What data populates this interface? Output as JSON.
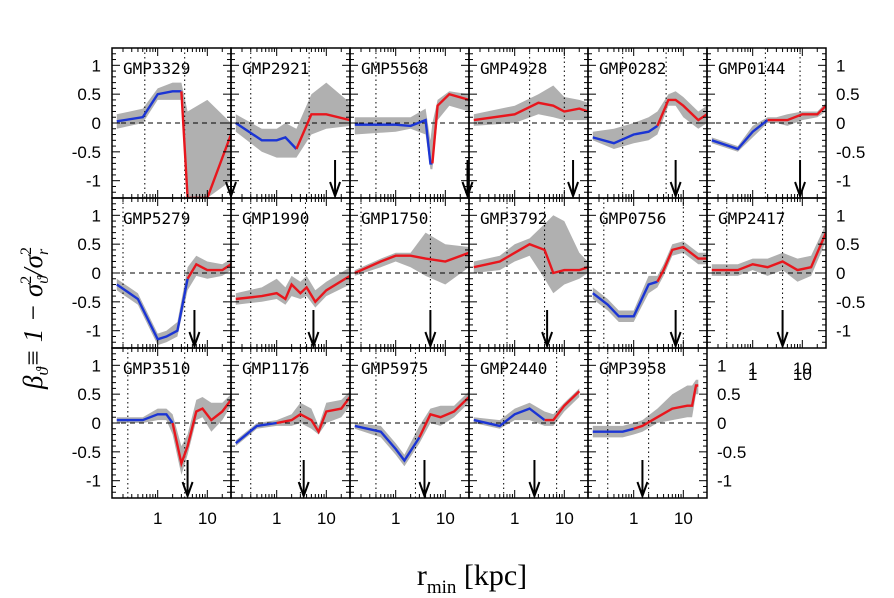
{
  "chart_data": {
    "type": "line",
    "xlabel": "r",
    "xlabel_sub": "min",
    "xlabel_unit": "[kpc]",
    "ylabel": "β",
    "ylabel_sub": "ϑ",
    "ylabel_rest": "≡ 1  −  σ",
    "ylabel_sub2": "ϑ",
    "ylabel_den": "/σ",
    "ylabel_sub3": "r",
    "ylabel_sup": "2",
    "x_scale": "log",
    "x_range": [
      0.12,
      30
    ],
    "x_ticks": [
      "1",
      "10"
    ],
    "x_tick_values": [
      1,
      10
    ],
    "y_range": [
      -1.3,
      1.3
    ],
    "y_ticks": [
      "1",
      "0.5",
      "0",
      "-0.5",
      "-1"
    ],
    "y_tick_values": [
      1,
      0.5,
      0,
      -0.5,
      -1
    ],
    "stray_x_tick": "1",
    "colors": {
      "red": "#e8161d",
      "blue": "#1b35d4",
      "band": "#b0b0b0"
    },
    "panels": [
      {
        "name": "GMP3329",
        "arrow": 30,
        "vlines": [
          0.55,
          3.5
        ],
        "switch": 3.2,
        "x": [
          0.15,
          0.5,
          1,
          2,
          3,
          4,
          10,
          30
        ],
        "y": [
          0.03,
          0.1,
          0.5,
          0.55,
          0.55,
          -1.3,
          -1.3,
          -0.2
        ],
        "lo": [
          -0.1,
          0,
          0.4,
          0.4,
          0.4,
          -1.3,
          -1.3,
          -1.0
        ],
        "hi": [
          0.15,
          0.25,
          0.6,
          0.7,
          0.7,
          0.2,
          0.4,
          0.0
        ]
      },
      {
        "name": "GMP2921",
        "arrow": 15,
        "vlines": [
          0.3,
          4.5
        ],
        "switch": 5,
        "x": [
          0.15,
          0.5,
          1,
          1.5,
          2.5,
          5,
          10,
          30
        ],
        "y": [
          0.0,
          -0.3,
          -0.3,
          -0.25,
          -0.45,
          0.15,
          0.15,
          0.05
        ],
        "lo": [
          -0.15,
          -0.5,
          -0.6,
          -0.6,
          -0.6,
          -0.2,
          -0.1,
          -0.05
        ],
        "hi": [
          0.15,
          -0.1,
          -0.1,
          0.0,
          -0.1,
          0.5,
          0.7,
          0.35
        ]
      },
      {
        "name": "GMP5568",
        "arrow": 28,
        "vlines": [
          0.4,
          3.0
        ],
        "switch": 7,
        "x": [
          0.15,
          1,
          2,
          4,
          5,
          5.5,
          7,
          12,
          30
        ],
        "y": [
          -0.03,
          -0.03,
          -0.05,
          0.05,
          -0.7,
          -0.7,
          0.3,
          0.5,
          0.4
        ],
        "lo": [
          -0.2,
          -0.15,
          -0.1,
          -0.2,
          -0.8,
          -0.8,
          0.05,
          0.3,
          0.2
        ],
        "hi": [
          0.1,
          0.1,
          0.1,
          0.25,
          -0.3,
          0.0,
          0.4,
          0.55,
          0.5
        ]
      },
      {
        "name": "GMP4928",
        "arrow": 15,
        "vlines": [
          2.0,
          10.0
        ],
        "switch": 0,
        "x": [
          0.15,
          1,
          3,
          6,
          10,
          20,
          30
        ],
        "y": [
          0.05,
          0.15,
          0.35,
          0.3,
          0.2,
          0.25,
          0.2
        ],
        "lo": [
          -0.05,
          0.0,
          0.15,
          0.1,
          0.05,
          0.05,
          0.05
        ],
        "hi": [
          0.15,
          0.3,
          0.5,
          0.65,
          0.45,
          0.4,
          0.35
        ]
      },
      {
        "name": "GMP0282",
        "arrow": 7,
        "vlines": [
          0.6,
          4.5
        ],
        "switch": 4.5,
        "x": [
          0.15,
          0.4,
          1,
          2,
          3,
          5,
          7,
          10,
          20,
          30
        ],
        "y": [
          -0.25,
          -0.35,
          -0.2,
          -0.15,
          -0.05,
          0.4,
          0.4,
          0.3,
          0.05,
          0.15
        ],
        "lo": [
          -0.3,
          -0.45,
          -0.35,
          -0.3,
          -0.2,
          0.3,
          0.3,
          0.1,
          -0.1,
          0.0
        ],
        "hi": [
          -0.15,
          -0.1,
          0.0,
          0.1,
          0.2,
          0.5,
          0.55,
          0.45,
          0.2,
          0.3
        ]
      },
      {
        "name": "GMP0144",
        "arrow": 9,
        "vlines": [
          1.8,
          9.0
        ],
        "switch": 3,
        "x": [
          0.15,
          0.5,
          1,
          2,
          3,
          5,
          10,
          20,
          30
        ],
        "y": [
          -0.3,
          -0.45,
          -0.15,
          0.05,
          0.05,
          0.05,
          0.15,
          0.15,
          0.3
        ],
        "lo": [
          -0.35,
          -0.5,
          -0.25,
          0.0,
          0.0,
          -0.05,
          0.05,
          0.1,
          0.2
        ],
        "hi": [
          -0.25,
          -0.4,
          -0.05,
          0.1,
          0.1,
          0.15,
          0.2,
          0.2,
          0.35
        ]
      },
      {
        "name": "GMP5279",
        "arrow": 5.5,
        "vlines": [
          0.2,
          3.5
        ],
        "switch": 4.5,
        "x": [
          0.15,
          0.4,
          1,
          1.5,
          2.5,
          4,
          6,
          10,
          20,
          30
        ],
        "y": [
          -0.2,
          -0.45,
          -1.15,
          -1.1,
          -1.0,
          -0.1,
          0.15,
          0.05,
          0.05,
          0.15
        ],
        "lo": [
          -0.3,
          -0.55,
          -1.25,
          -1.2,
          -1.1,
          -0.3,
          -0.05,
          -0.1,
          -0.05,
          0.05
        ],
        "hi": [
          -0.1,
          -0.35,
          -1.05,
          -1.0,
          -0.85,
          0.1,
          0.3,
          0.2,
          0.15,
          0.25
        ]
      },
      {
        "name": "GMP1990",
        "arrow": 5.5,
        "vlines": [
          0.3,
          3.8
        ],
        "switch": 0,
        "x": [
          0.15,
          0.5,
          1,
          1.5,
          2,
          3,
          4,
          6,
          10,
          30
        ],
        "y": [
          -0.45,
          -0.4,
          -0.35,
          -0.45,
          -0.2,
          -0.35,
          -0.25,
          -0.5,
          -0.3,
          -0.05
        ],
        "lo": [
          -0.55,
          -0.5,
          -0.45,
          -0.55,
          -0.4,
          -0.45,
          -0.4,
          -0.6,
          -0.4,
          -0.2
        ],
        "hi": [
          -0.35,
          -0.25,
          -0.1,
          -0.25,
          -0.05,
          -0.15,
          -0.05,
          -0.3,
          -0.15,
          0.1
        ]
      },
      {
        "name": "GMP1750",
        "arrow": 5,
        "vlines": [
          0.2,
          5.0
        ],
        "switch": 0.16,
        "x": [
          0.15,
          0.5,
          1,
          2,
          4,
          10,
          30
        ],
        "y": [
          0.0,
          0.2,
          0.3,
          0.3,
          0.25,
          0.2,
          0.35
        ],
        "lo": [
          -0.05,
          0.1,
          0.2,
          0.1,
          -0.05,
          -0.2,
          0.1
        ],
        "hi": [
          0.05,
          0.25,
          0.35,
          0.35,
          0.7,
          0.5,
          0.45
        ]
      },
      {
        "name": "GMP3792",
        "arrow": 4.5,
        "vlines": [
          0.7,
          4.0
        ],
        "switch": 0,
        "x": [
          0.15,
          0.5,
          1,
          2,
          4,
          6,
          10,
          20,
          30
        ],
        "y": [
          0.1,
          0.2,
          0.35,
          0.5,
          0.4,
          0.0,
          0.05,
          0.05,
          0.1
        ],
        "lo": [
          0.0,
          0.05,
          0.2,
          0.3,
          -0.1,
          -0.35,
          -0.2,
          -0.1,
          0.0
        ],
        "hi": [
          0.2,
          0.3,
          0.5,
          0.6,
          0.85,
          1.0,
          0.9,
          0.35,
          0.2
        ]
      },
      {
        "name": "GMP0756",
        "arrow": 7,
        "vlines": [
          0.25,
          10.0
        ],
        "switch": 4,
        "x": [
          0.15,
          0.3,
          0.5,
          1,
          2,
          3,
          4,
          6,
          10,
          20,
          30
        ],
        "y": [
          -0.35,
          -0.55,
          -0.75,
          -0.75,
          -0.2,
          -0.15,
          0.05,
          0.4,
          0.45,
          0.25,
          0.25
        ],
        "lo": [
          -0.45,
          -0.65,
          -0.85,
          -0.85,
          -0.35,
          -0.25,
          -0.05,
          0.3,
          0.35,
          0.15,
          0.15
        ],
        "hi": [
          -0.25,
          -0.45,
          -0.65,
          -0.65,
          -0.05,
          -0.05,
          0.15,
          0.5,
          0.55,
          0.35,
          0.35
        ]
      },
      {
        "name": "GMP2417",
        "arrow": 4,
        "vlines": [
          0.3,
          4.0
        ],
        "switch": 0,
        "x": [
          0.15,
          0.5,
          1,
          2,
          4,
          8,
          15,
          30
        ],
        "y": [
          0.05,
          0.05,
          0.15,
          0.1,
          0.2,
          0.05,
          0.1,
          0.7
        ],
        "lo": [
          -0.05,
          -0.05,
          0.05,
          -0.05,
          0.05,
          -0.15,
          -0.05,
          0.55
        ],
        "hi": [
          0.15,
          0.15,
          0.25,
          0.25,
          0.35,
          0.25,
          0.3,
          0.85
        ]
      },
      {
        "name": "GMP3510",
        "arrow": 4,
        "vlines": [
          0.25,
          3.5
        ],
        "switch": 2.5,
        "x": [
          0.15,
          0.5,
          1,
          1.5,
          2,
          3,
          4,
          6,
          8,
          12,
          20,
          30
        ],
        "y": [
          0.05,
          0.05,
          0.15,
          0.15,
          0.0,
          -0.7,
          -0.4,
          0.2,
          0.25,
          0.05,
          0.2,
          0.4
        ],
        "lo": [
          0.0,
          0.0,
          0.05,
          0.05,
          -0.2,
          -0.9,
          -0.55,
          0.05,
          0.1,
          -0.15,
          0.05,
          0.3
        ],
        "hi": [
          0.1,
          0.1,
          0.25,
          0.25,
          0.15,
          -0.4,
          -0.2,
          0.4,
          0.45,
          0.35,
          0.35,
          0.5
        ]
      },
      {
        "name": "GMP1176",
        "arrow": 3.5,
        "vlines": [
          0.3,
          3.0
        ],
        "switch": 2,
        "x": [
          0.15,
          0.4,
          1,
          2,
          3,
          5,
          7,
          10,
          20,
          30
        ],
        "y": [
          -0.35,
          -0.05,
          0.0,
          0.05,
          0.15,
          0.05,
          -0.15,
          0.2,
          0.25,
          0.45
        ],
        "lo": [
          -0.4,
          -0.1,
          -0.05,
          -0.05,
          0.0,
          -0.1,
          -0.2,
          0.0,
          0.1,
          0.3
        ],
        "hi": [
          -0.3,
          0.0,
          0.05,
          0.15,
          0.35,
          0.25,
          -0.05,
          0.35,
          0.4,
          0.55
        ]
      },
      {
        "name": "GMP5975",
        "arrow": 3.8,
        "vlines": [
          0.4,
          2.5
        ],
        "switch": 4,
        "x": [
          0.15,
          0.5,
          1,
          1.5,
          3,
          5,
          8,
          15,
          30
        ],
        "y": [
          -0.05,
          -0.15,
          -0.45,
          -0.65,
          -0.25,
          0.15,
          0.1,
          0.2,
          0.45
        ],
        "lo": [
          -0.1,
          -0.25,
          -0.55,
          -0.75,
          -0.35,
          0.0,
          -0.05,
          0.1,
          0.35
        ],
        "hi": [
          0.0,
          -0.05,
          -0.35,
          -0.55,
          -0.05,
          0.25,
          0.3,
          0.3,
          0.55
        ]
      },
      {
        "name": "GMP2440",
        "arrow": 2.5,
        "vlines": [
          0.6,
          7.0
        ],
        "switch": 6,
        "x": [
          0.15,
          0.5,
          1,
          2,
          4,
          6,
          10,
          20
        ],
        "y": [
          0.05,
          -0.05,
          0.15,
          0.25,
          0.05,
          0.05,
          0.3,
          0.55
        ],
        "lo": [
          0.0,
          -0.1,
          0.05,
          0.05,
          -0.05,
          -0.05,
          0.2,
          0.45
        ],
        "hi": [
          0.1,
          0.05,
          0.25,
          0.35,
          0.2,
          0.15,
          0.35,
          0.6
        ]
      },
      {
        "name": "GMP3958",
        "arrow": 1.5,
        "vlines": [
          0.3,
          2.0
        ],
        "switch": 1.5,
        "x": [
          0.15,
          0.3,
          0.6,
          1,
          1.5,
          3,
          6,
          12,
          15,
          18,
          20
        ],
        "y": [
          -0.15,
          -0.15,
          -0.15,
          -0.1,
          -0.05,
          0.1,
          0.25,
          0.3,
          0.3,
          0.65,
          0.65
        ],
        "lo": [
          -0.25,
          -0.25,
          -0.25,
          -0.2,
          -0.15,
          0.0,
          0.05,
          0.1,
          0.1,
          0.5,
          0.5
        ],
        "hi": [
          -0.05,
          -0.05,
          -0.05,
          0.0,
          0.05,
          0.25,
          0.5,
          0.65,
          0.65,
          0.75,
          0.75
        ]
      }
    ]
  }
}
